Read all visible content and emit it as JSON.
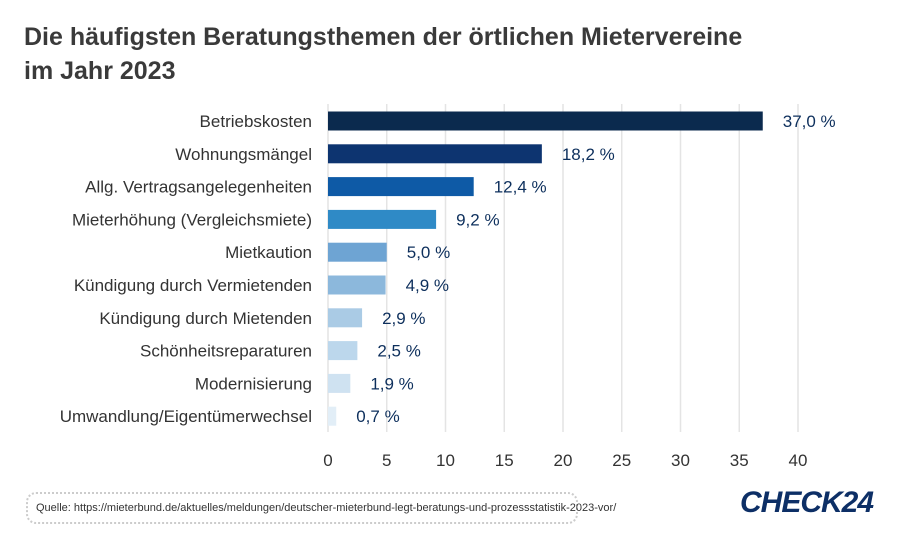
{
  "chart_data": {
    "type": "bar",
    "orientation": "horizontal",
    "title": "Die häufigsten Beratungsthemen der örtlichen Mietervereine im Jahr 2023",
    "title_lines": [
      "Die häufigsten Beratungsthemen der örtlichen Mietervereine",
      "im Jahr 2023"
    ],
    "categories": [
      "Betriebskosten",
      "Wohnungsmängel",
      "Allg. Vertragsangelegenheiten",
      "Mieterhöhung (Vergleichsmiete)",
      "Mietkaution",
      "Kündigung durch Vermietenden",
      "Kündigung durch Mietenden",
      "Schönheitsreparaturen",
      "Modernisierung",
      "Umwandlung/Eigentümerwechsel"
    ],
    "values": [
      37.0,
      18.2,
      12.4,
      9.2,
      5.0,
      4.9,
      2.9,
      2.5,
      1.9,
      0.7
    ],
    "data_labels": [
      "37,0 %",
      "18,2 %",
      "12,4 %",
      "9,2 %",
      "5,0 %",
      "4,9 %",
      "2,9 %",
      "2,5 %",
      "1,9 %",
      "0,7 %"
    ],
    "colors": [
      "#0b2a4e",
      "#0d3470",
      "#0e5aa6",
      "#2f8ac6",
      "#6ea4d3",
      "#8cb8dc",
      "#aacbe5",
      "#bcd7ec",
      "#cfe2f1",
      "#e2eef7"
    ],
    "xlim": [
      0,
      40
    ],
    "xticks": [
      "0",
      "5",
      "10",
      "15",
      "20",
      "25",
      "30",
      "35",
      "40"
    ],
    "grid": true,
    "xlabel": "",
    "ylabel": ""
  },
  "source": "Quelle: https://mieterbund.de/aktuelles/meldungen/deutscher-mieterbund-legt-beratungs-und-prozessstatistik-2023-vor/",
  "logo": "CHECK24"
}
